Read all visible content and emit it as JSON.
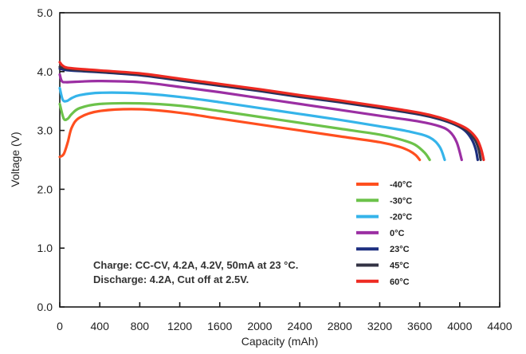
{
  "chart_data": {
    "type": "line",
    "title": "",
    "xlabel": "Capacity (mAh)",
    "ylabel": "Voltage (V)",
    "xlim": [
      0,
      4400
    ],
    "ylim": [
      0.0,
      5.0
    ],
    "x_ticks": [
      0,
      400,
      800,
      1200,
      1600,
      2000,
      2400,
      2800,
      3200,
      3600,
      4000,
      4400
    ],
    "y_ticks": [
      0.0,
      1.0,
      2.0,
      3.0,
      4.0,
      5.0
    ],
    "x_tick_labels": [
      "0",
      "400",
      "800",
      "1200",
      "1600",
      "2000",
      "2400",
      "2800",
      "3200",
      "3600",
      "4000",
      "4400"
    ],
    "y_tick_labels": [
      "0.0",
      "1.0",
      "2.0",
      "3.0",
      "4.0",
      "5.0"
    ],
    "grid": false,
    "legend_position": "bottom-right",
    "annotation_lines": [
      "Charge: CC-CV, 4.2A, 4.2V, 50mA at 23 °C.",
      "Discharge: 4.2A, Cut off at 2.5V."
    ],
    "series": [
      {
        "name": "-40°C",
        "color": "#ff4f1f",
        "points": [
          [
            0,
            2.55
          ],
          [
            40,
            2.6
          ],
          [
            80,
            2.8
          ],
          [
            120,
            3.05
          ],
          [
            200,
            3.22
          ],
          [
            400,
            3.33
          ],
          [
            800,
            3.36
          ],
          [
            1200,
            3.3
          ],
          [
            1600,
            3.2
          ],
          [
            2000,
            3.1
          ],
          [
            2400,
            3.0
          ],
          [
            2800,
            2.9
          ],
          [
            3200,
            2.8
          ],
          [
            3400,
            2.72
          ],
          [
            3500,
            2.65
          ],
          [
            3560,
            2.58
          ],
          [
            3600,
            2.5
          ]
        ]
      },
      {
        "name": "-30°C",
        "color": "#6cc24a",
        "points": [
          [
            0,
            3.45
          ],
          [
            40,
            3.2
          ],
          [
            80,
            3.2
          ],
          [
            120,
            3.28
          ],
          [
            200,
            3.38
          ],
          [
            400,
            3.45
          ],
          [
            800,
            3.46
          ],
          [
            1200,
            3.42
          ],
          [
            1600,
            3.33
          ],
          [
            2000,
            3.23
          ],
          [
            2400,
            3.13
          ],
          [
            2800,
            3.03
          ],
          [
            3200,
            2.93
          ],
          [
            3400,
            2.85
          ],
          [
            3550,
            2.76
          ],
          [
            3650,
            2.62
          ],
          [
            3700,
            2.5
          ]
        ]
      },
      {
        "name": "-20°C",
        "color": "#35b4ea",
        "points": [
          [
            0,
            3.72
          ],
          [
            30,
            3.52
          ],
          [
            70,
            3.5
          ],
          [
            120,
            3.55
          ],
          [
            200,
            3.6
          ],
          [
            400,
            3.64
          ],
          [
            800,
            3.63
          ],
          [
            1200,
            3.57
          ],
          [
            1600,
            3.48
          ],
          [
            2000,
            3.38
          ],
          [
            2400,
            3.28
          ],
          [
            2800,
            3.18
          ],
          [
            3200,
            3.07
          ],
          [
            3500,
            2.98
          ],
          [
            3700,
            2.88
          ],
          [
            3800,
            2.72
          ],
          [
            3850,
            2.5
          ]
        ]
      },
      {
        "name": "0°C",
        "color": "#9b2fa3",
        "points": [
          [
            0,
            3.95
          ],
          [
            20,
            3.84
          ],
          [
            60,
            3.82
          ],
          [
            200,
            3.83
          ],
          [
            400,
            3.84
          ],
          [
            800,
            3.82
          ],
          [
            1200,
            3.74
          ],
          [
            1600,
            3.65
          ],
          [
            2000,
            3.55
          ],
          [
            2400,
            3.45
          ],
          [
            2800,
            3.35
          ],
          [
            3200,
            3.25
          ],
          [
            3600,
            3.15
          ],
          [
            3800,
            3.07
          ],
          [
            3900,
            2.98
          ],
          [
            3970,
            2.8
          ],
          [
            4020,
            2.5
          ]
        ]
      },
      {
        "name": "23°C",
        "color": "#1d2f80",
        "points": [
          [
            0,
            4.05
          ],
          [
            100,
            4.02
          ],
          [
            400,
            3.99
          ],
          [
            800,
            3.94
          ],
          [
            1200,
            3.85
          ],
          [
            1600,
            3.76
          ],
          [
            2000,
            3.67
          ],
          [
            2400,
            3.57
          ],
          [
            2800,
            3.48
          ],
          [
            3200,
            3.38
          ],
          [
            3600,
            3.27
          ],
          [
            3800,
            3.19
          ],
          [
            3950,
            3.1
          ],
          [
            4050,
            3.0
          ],
          [
            4120,
            2.85
          ],
          [
            4160,
            2.68
          ],
          [
            4180,
            2.5
          ]
        ]
      },
      {
        "name": "45°C",
        "color": "#333344",
        "points": [
          [
            0,
            4.08
          ],
          [
            100,
            4.04
          ],
          [
            400,
            4.0
          ],
          [
            800,
            3.95
          ],
          [
            1200,
            3.86
          ],
          [
            1600,
            3.77
          ],
          [
            2000,
            3.68
          ],
          [
            2400,
            3.58
          ],
          [
            2800,
            3.49
          ],
          [
            3200,
            3.39
          ],
          [
            3600,
            3.28
          ],
          [
            3800,
            3.2
          ],
          [
            3950,
            3.11
          ],
          [
            4070,
            3.0
          ],
          [
            4150,
            2.85
          ],
          [
            4190,
            2.68
          ],
          [
            4210,
            2.5
          ]
        ]
      },
      {
        "name": "60°C",
        "color": "#ee2a22",
        "points": [
          [
            0,
            4.16
          ],
          [
            30,
            4.1
          ],
          [
            100,
            4.06
          ],
          [
            400,
            4.02
          ],
          [
            800,
            3.97
          ],
          [
            1200,
            3.88
          ],
          [
            1600,
            3.79
          ],
          [
            2000,
            3.7
          ],
          [
            2400,
            3.6
          ],
          [
            2800,
            3.51
          ],
          [
            3200,
            3.41
          ],
          [
            3600,
            3.3
          ],
          [
            3800,
            3.22
          ],
          [
            3950,
            3.13
          ],
          [
            4080,
            3.02
          ],
          [
            4170,
            2.86
          ],
          [
            4215,
            2.68
          ],
          [
            4240,
            2.5
          ]
        ]
      }
    ]
  }
}
